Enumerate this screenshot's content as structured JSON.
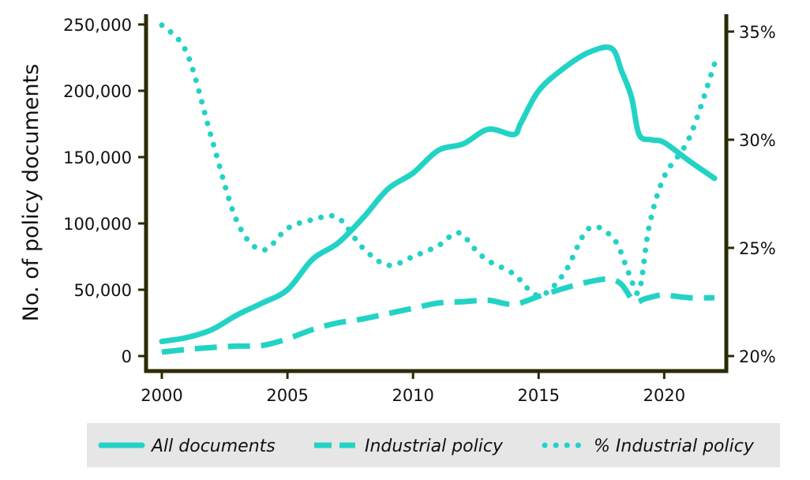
{
  "chart_data": {
    "type": "line",
    "title": "",
    "xlabel": "",
    "ylabel": "No. of policy documents",
    "xlim": [
      2000,
      2022
    ],
    "ylim": [
      0,
      250000
    ],
    "y2lim": [
      20,
      35
    ],
    "x_ticks": [
      2000,
      2005,
      2010,
      2015,
      2020
    ],
    "y_ticks": [
      0,
      50000,
      100000,
      150000,
      200000,
      250000
    ],
    "y_tick_labels": [
      "0",
      "50,000",
      "100,000",
      "150,000",
      "200,000",
      "250,000"
    ],
    "y2_ticks": [
      20,
      25,
      30,
      35
    ],
    "y2_tick_labels": [
      "20%",
      "25%",
      "30%",
      "35%"
    ],
    "grid": false,
    "legend_position": "bottom",
    "series": [
      {
        "name": "All documents",
        "axis": "left",
        "style": "solid",
        "color": "#22d3c5",
        "x": [
          2000,
          2001,
          2002,
          2003,
          2004,
          2005,
          2006,
          2007,
          2008,
          2009,
          2010,
          2011,
          2012,
          2013,
          2014,
          2014.3,
          2015,
          2016,
          2017,
          2017.9,
          2018.3,
          2018.7,
          2019,
          2019.5,
          2020,
          2021,
          2022
        ],
        "values": [
          11000,
          14000,
          20000,
          31000,
          40000,
          50000,
          73000,
          85000,
          104000,
          126000,
          138000,
          155000,
          160000,
          171000,
          167000,
          176000,
          200000,
          217000,
          229000,
          232000,
          215000,
          195000,
          167000,
          163000,
          161000,
          147000,
          134000
        ]
      },
      {
        "name": "Industrial policy",
        "axis": "left",
        "style": "dashed",
        "color": "#22d3c5",
        "x": [
          2000,
          2001,
          2002,
          2003,
          2004,
          2005,
          2006,
          2007,
          2008,
          2009,
          2010,
          2011,
          2012,
          2013,
          2014,
          2015,
          2016,
          2017,
          2017.8,
          2018.3,
          2018.8,
          2019.2,
          2019.6,
          2020,
          2021,
          2022
        ],
        "values": [
          3000,
          5000,
          6500,
          7500,
          8000,
          13000,
          20000,
          25000,
          28000,
          32000,
          36000,
          40000,
          41000,
          42000,
          39000,
          45000,
          51000,
          56000,
          58000,
          54000,
          41000,
          43000,
          45000,
          46000,
          44000,
          44000
        ]
      },
      {
        "name": "% Industrial policy",
        "axis": "right",
        "style": "dotted",
        "color": "#22d3c5",
        "x": [
          2000,
          2001,
          2002,
          2003,
          2004,
          2005,
          2006,
          2007,
          2008,
          2009,
          2010,
          2011,
          2011.8,
          2012.5,
          2013,
          2014,
          2015,
          2016,
          2017,
          2018,
          2018.6,
          2019,
          2019.4,
          2020,
          2021,
          2022
        ],
        "values": [
          35.3,
          34.0,
          30.0,
          26.2,
          24.9,
          25.9,
          26.3,
          26.4,
          25.0,
          24.2,
          24.6,
          25.1,
          25.7,
          24.9,
          24.4,
          23.8,
          22.8,
          23.8,
          25.9,
          25.4,
          23.8,
          23.0,
          26.0,
          28.3,
          30.1,
          33.5
        ]
      }
    ]
  }
}
